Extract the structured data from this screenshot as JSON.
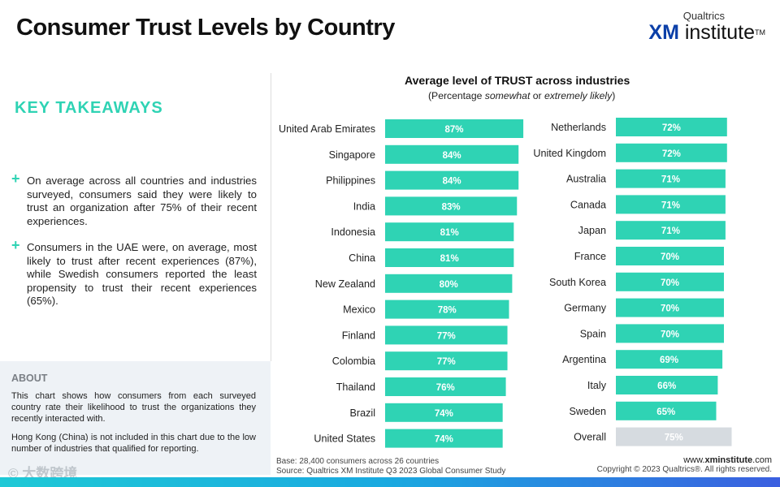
{
  "header": {
    "title": "Consumer Trust Levels by Country",
    "logo_top": "Qualtrics",
    "logo_xm": "XM",
    "logo_rest": " institute",
    "logo_tm": "TM"
  },
  "takeaways": {
    "heading": "KEY TAKEAWAYS",
    "plus": "+",
    "items": [
      "On average across all countries and industries surveyed, consumers said they were likely to trust an organization after 75% of their recent experiences.",
      "Consumers in the UAE were, on average, most likely to trust after recent experiences (87%), while Swedish consumers reported the least propensity to trust their recent experiences (65%)."
    ]
  },
  "about": {
    "heading": "ABOUT",
    "p1": "This chart shows how consumers from each surveyed country rate their likelihood to trust the organizations they recently interacted with.",
    "p2": "Hong Kong (China) is not included in this chart due to the low number of industries that qualified for reporting."
  },
  "footer": {
    "base": "Base: 28,400 consumers across 26 countries",
    "source": "Source: Qualtrics XM Institute Q3 2023 Global Consumer Study",
    "site_prefix": "www.",
    "site_bold": "xminstitute",
    "site_suffix": ".com",
    "copyright": "Copyright © 2023 Qualtrics®. All rights reserved.",
    "watermark": "© 大数跨境"
  },
  "colors": {
    "bar": "#2fd3b4",
    "overall_bar": "#d6dbe0",
    "accent": "#2fd3b4"
  },
  "chart_data": {
    "type": "bar",
    "orientation": "horizontal",
    "title": "Average level of TRUST across industries",
    "subtitle_pre": "(Percentage ",
    "subtitle_em1": "somewhat",
    "subtitle_mid": " or ",
    "subtitle_em2": "extremely likely",
    "subtitle_post": ")",
    "value_suffix": "%",
    "xlim": [
      0,
      100
    ],
    "panels": [
      {
        "categories": [
          "United Arab Emirates",
          "Singapore",
          "Philippines",
          "India",
          "Indonesia",
          "China",
          "New Zealand",
          "Mexico",
          "Finland",
          "Colombia",
          "Thailand",
          "Brazil",
          "United States"
        ],
        "values": [
          87,
          84,
          84,
          83,
          81,
          81,
          80,
          78,
          77,
          77,
          76,
          74,
          74
        ]
      },
      {
        "categories": [
          "Netherlands",
          "United Kingdom",
          "Australia",
          "Canada",
          "Japan",
          "France",
          "South Korea",
          "Germany",
          "Spain",
          "Argentina",
          "Italy",
          "Sweden",
          "Overall"
        ],
        "values": [
          72,
          72,
          71,
          71,
          71,
          70,
          70,
          70,
          70,
          69,
          66,
          65,
          75
        ],
        "highlight": "Overall"
      }
    ]
  }
}
